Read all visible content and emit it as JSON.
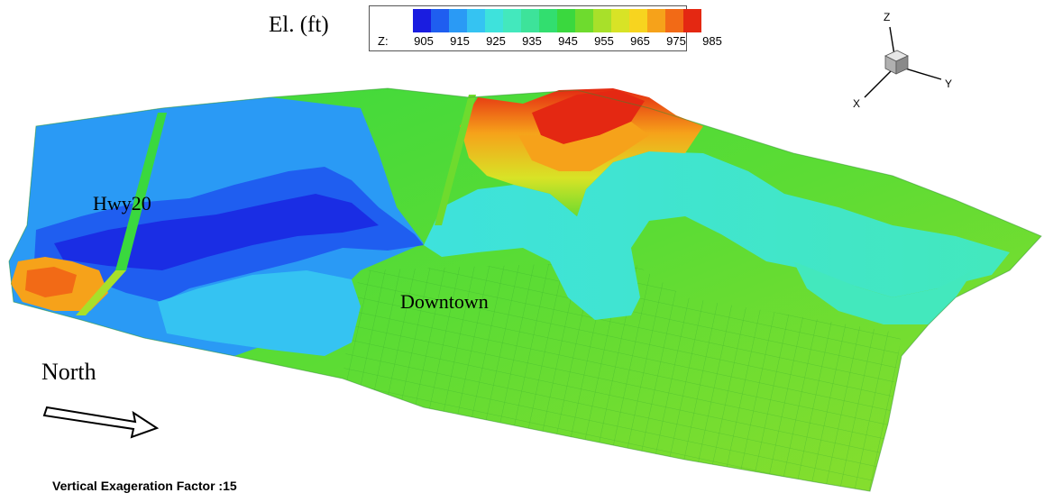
{
  "legend": {
    "title": "El. (ft)",
    "variable": "Z:",
    "ticks": [
      "905",
      "915",
      "925",
      "935",
      "945",
      "955",
      "965",
      "975",
      "985"
    ],
    "colors": [
      "#1a1de0",
      "#1f5ef0",
      "#2a9af5",
      "#35c3f2",
      "#3ee2dc",
      "#43e8bd",
      "#3de39a",
      "#32de6f",
      "#3ad83e",
      "#6edb2e",
      "#a8e02a",
      "#d8e326",
      "#f7d41f",
      "#f6a21a",
      "#f26a16",
      "#e42812"
    ]
  },
  "map": {
    "labels": {
      "highway": "Hwy20",
      "downtown": "Downtown"
    },
    "colors": {
      "low_blue": "#1f5ef0",
      "light_blue": "#2a9af5",
      "cyan_water": "#3ee2dc",
      "green_land": "#3ad83e",
      "yellow_green": "#a8e02a",
      "high_red": "#e42812"
    }
  },
  "north_arrow": {
    "label": "North"
  },
  "axes_triad": {
    "z": "Z",
    "y": "Y",
    "x": "X"
  },
  "footer": {
    "vertical_factor": "Vertical Exageration Factor :15"
  }
}
